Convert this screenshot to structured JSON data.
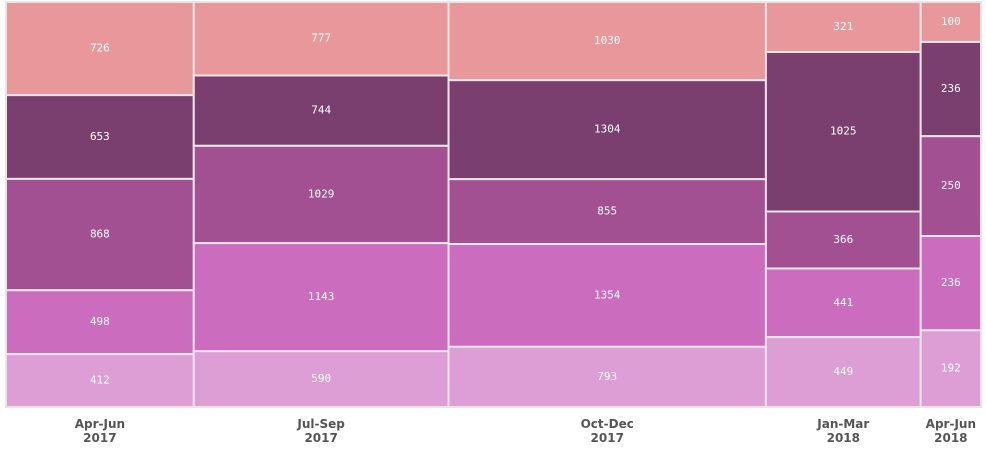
{
  "chart_data": {
    "type": "mekko",
    "categories": [
      {
        "line1": "Apr-Jun",
        "line2": "2017"
      },
      {
        "line1": "Jul-Sep",
        "line2": "2017"
      },
      {
        "line1": "Oct-Dec",
        "line2": "2017"
      },
      {
        "line1": "Jan-Mar",
        "line2": "2018"
      },
      {
        "line1": "Apr-Jun",
        "line2": "2018"
      }
    ],
    "segments_top_to_bottom": [
      [
        726,
        653,
        868,
        498,
        412
      ],
      [
        777,
        744,
        1029,
        1143,
        590
      ],
      [
        1030,
        1304,
        855,
        1354,
        793
      ],
      [
        321,
        1025,
        366,
        441,
        449
      ],
      [
        100,
        236,
        250,
        236,
        192
      ]
    ],
    "colors": [
      "#e8979a",
      "#7b3f6f",
      "#a35093",
      "#cb6cbf",
      "#dd9ed6"
    ],
    "legend": "none",
    "grid": false
  }
}
